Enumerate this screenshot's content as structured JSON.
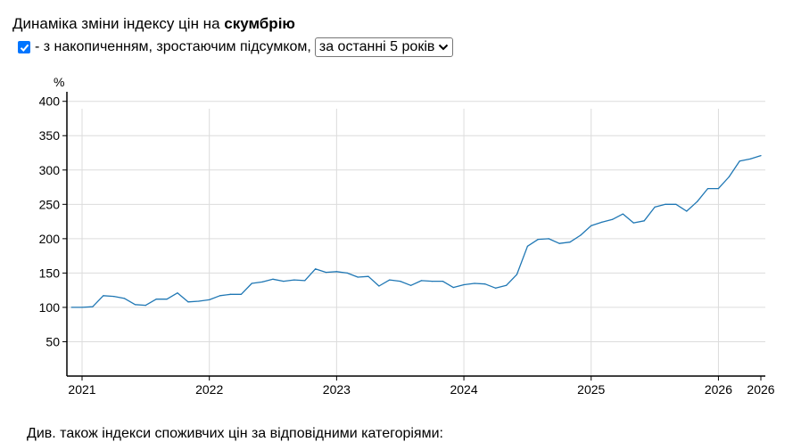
{
  "header": {
    "title_prefix": "Динаміка зміни індексу цін на ",
    "title_bold": "скумбрію"
  },
  "controls": {
    "cumulative_checked": true,
    "cumulative_label": "- з накопиченням, зростаючим підсумком,",
    "period_selected": "за останні 5 років"
  },
  "chart_data": {
    "type": "line",
    "ylabel": "%",
    "ylim": [
      0,
      410
    ],
    "yticks": [
      50,
      100,
      150,
      200,
      250,
      300,
      350,
      400
    ],
    "xticks": [
      {
        "x": "2021-01",
        "label": "2021"
      },
      {
        "x": "2022-01",
        "label": "2022"
      },
      {
        "x": "2023-01",
        "label": "2023"
      },
      {
        "x": "2024-01",
        "label": "2024"
      },
      {
        "x": "2025-01",
        "label": "2025"
      },
      {
        "x": "2026-01",
        "label": "2026"
      },
      {
        "x": "2026-05",
        "label": "2026"
      }
    ],
    "grid": true,
    "color": "#1f77b4",
    "series": [
      {
        "x": [
          "2020-12",
          "2021-01",
          "2021-02",
          "2021-03",
          "2021-04",
          "2021-05",
          "2021-06",
          "2021-07",
          "2021-08",
          "2021-09",
          "2021-10",
          "2021-11",
          "2021-12",
          "2022-01",
          "2022-02",
          "2022-03",
          "2022-04",
          "2022-05",
          "2022-06",
          "2022-07",
          "2022-08",
          "2022-09",
          "2022-10",
          "2022-11",
          "2022-12",
          "2023-01",
          "2023-02",
          "2023-03",
          "2023-04",
          "2023-05",
          "2023-06",
          "2023-07",
          "2023-08",
          "2023-09",
          "2023-10",
          "2023-11",
          "2023-12",
          "2024-01",
          "2024-02",
          "2024-03",
          "2024-04",
          "2024-05",
          "2024-06",
          "2024-07",
          "2024-08",
          "2024-09",
          "2024-10",
          "2024-11",
          "2024-12",
          "2025-01",
          "2025-02",
          "2025-03",
          "2025-04",
          "2025-05",
          "2025-06",
          "2025-07",
          "2025-08",
          "2025-09",
          "2025-10",
          "2025-11",
          "2025-12",
          "2026-01",
          "2026-02",
          "2026-03",
          "2026-04",
          "2026-05"
        ],
        "values": [
          100,
          100,
          101,
          117,
          116,
          113,
          104,
          103,
          112,
          112,
          121,
          108,
          109,
          111,
          117,
          119,
          119,
          135,
          137,
          141,
          138,
          140,
          139,
          156,
          151,
          152,
          150,
          144,
          145,
          131,
          140,
          138,
          132,
          139,
          138,
          138,
          129,
          133,
          135,
          134,
          128,
          132,
          148,
          189,
          199,
          200,
          193,
          195,
          205,
          219,
          224,
          228,
          236,
          223,
          226,
          246,
          250,
          250,
          240,
          254,
          273,
          273,
          290,
          313,
          316,
          321
        ]
      }
    ]
  },
  "footer": {
    "text": "Див. також індекси споживчих цін за відповідними категоріями:"
  }
}
